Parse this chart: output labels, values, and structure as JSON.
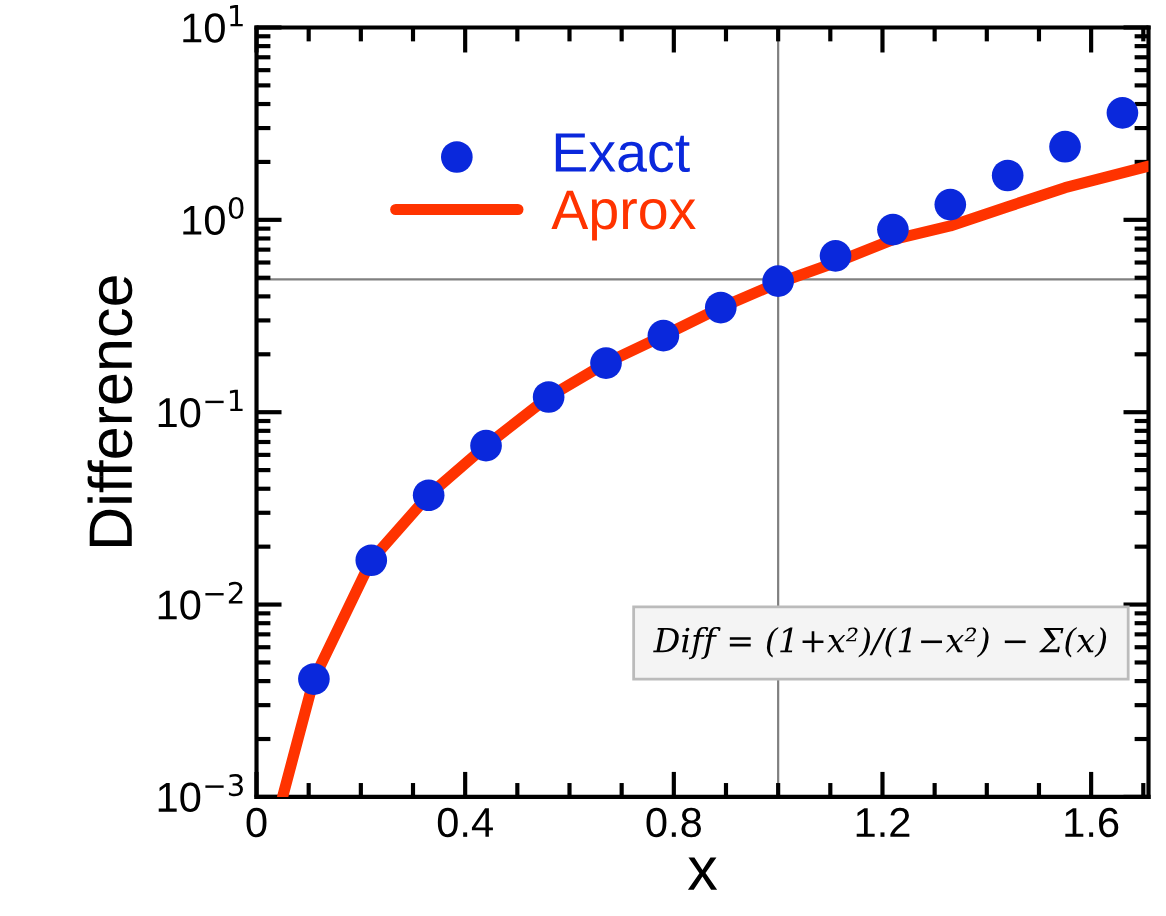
{
  "chart_data": {
    "type": "scatter",
    "xlabel": "x",
    "ylabel": "Difference",
    "series": [
      {
        "name": "Exact",
        "color": "#0a28dc",
        "marker": "circle",
        "x": [
          0.11,
          0.22,
          0.33,
          0.44,
          0.56,
          0.67,
          0.78,
          0.89,
          1.0,
          1.11,
          1.22,
          1.33,
          1.44,
          1.55,
          1.66
        ],
        "values": [
          0.0041,
          0.017,
          0.037,
          0.067,
          0.12,
          0.18,
          0.25,
          0.35,
          0.48,
          0.65,
          0.89,
          1.2,
          1.7,
          2.4,
          3.6
        ]
      },
      {
        "name": "Aprox",
        "type": "line",
        "color": "#ff3300",
        "x": [
          0.05,
          0.11,
          0.22,
          0.33,
          0.44,
          0.56,
          0.67,
          0.78,
          0.89,
          1.0,
          1.11,
          1.22,
          1.33,
          1.44,
          1.55,
          1.71
        ],
        "values": [
          0.001,
          0.0041,
          0.017,
          0.037,
          0.067,
          0.12,
          0.18,
          0.25,
          0.35,
          0.47,
          0.6,
          0.79,
          0.93,
          1.17,
          1.47,
          1.9
        ]
      }
    ],
    "log": "y",
    "xlim": [
      0,
      1.71
    ],
    "xticks": [
      0,
      0.4,
      0.8,
      1.2,
      1.6
    ],
    "ylim": [
      0.001,
      10
    ],
    "yticks": [
      {
        "value": 0.001,
        "label": "10$^{−3}$"
      },
      {
        "value": 0.01,
        "label": "10$^{−2}$"
      },
      {
        "value": 0.1,
        "label": "10$^{−1}$"
      },
      {
        "value": 1,
        "label": "10$^{0}$"
      },
      {
        "value": 10,
        "label": "10$^{1}$"
      }
    ],
    "ref_lines": [
      {
        "axis": "x",
        "value": 1.0,
        "color": "#808080"
      },
      {
        "axis": "y",
        "value": 0.49,
        "color": "#808080"
      }
    ],
    "annotations": [
      "Diff = (1+x²)/(1−x²) − Σ(x)"
    ],
    "legend": "top left",
    "grid": false
  }
}
